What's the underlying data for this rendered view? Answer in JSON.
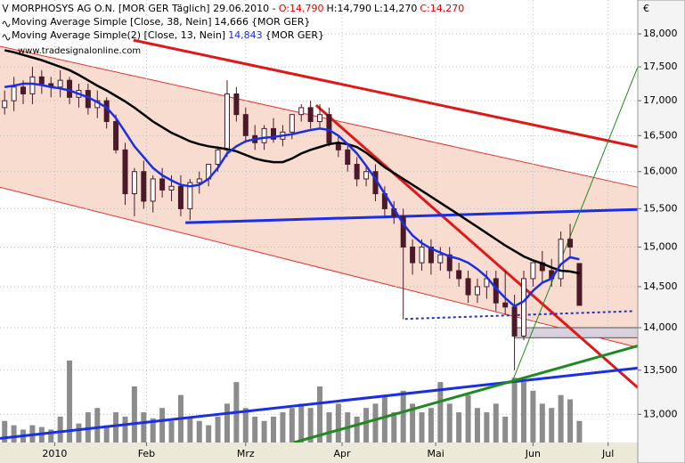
{
  "chart_data": {
    "type": "candlestick",
    "header": {
      "title": "MORPHOSYS AG O.N. [MOR GER  Täglich] 29.06.2010 -",
      "open": "O:14,790",
      "high": "H:14,790",
      "low": "L:14,270",
      "close": "C:14,270"
    },
    "watermark": "www.tradesignalonline.com",
    "currency": "€",
    "log_scale": true,
    "grid": true,
    "ylim": [
      12690,
      18530
    ],
    "yticks": [
      {
        "value": 13000,
        "label": "13,000"
      },
      {
        "value": 13500,
        "label": "13,500"
      },
      {
        "value": 14000,
        "label": "14,000"
      },
      {
        "value": 14500,
        "label": "14,500"
      },
      {
        "value": 15000,
        "label": "15,000"
      },
      {
        "value": 15500,
        "label": "15,500"
      },
      {
        "value": 16000,
        "label": "16,000"
      },
      {
        "value": 16500,
        "label": "16,500"
      },
      {
        "value": 17000,
        "label": "17,000"
      },
      {
        "value": 17500,
        "label": "17,500"
      },
      {
        "value": 18000,
        "label": "18,000"
      }
    ],
    "xlim": [
      -0.5,
      68.3
    ],
    "xticks": [
      {
        "value": 5.4,
        "label": "2010"
      },
      {
        "value": 15.3,
        "label": "Feb"
      },
      {
        "value": 26,
        "label": "Mrz"
      },
      {
        "value": 36.4,
        "label": "Apr"
      },
      {
        "value": 46.5,
        "label": "Mai"
      },
      {
        "value": 57,
        "label": "Jun"
      },
      {
        "value": 65.1,
        "label": "Jul"
      }
    ],
    "candle_color": "#4a1a2a",
    "candles": {
      "open": [
        16900,
        17000,
        17200,
        17100,
        17350,
        17250,
        17200,
        17300,
        17050,
        17150,
        16900,
        17000,
        16700,
        16300,
        15700,
        16000,
        15600,
        15900,
        15750,
        15800,
        15500,
        15850,
        15900,
        16100,
        16300,
        17100,
        16800,
        16500,
        16400,
        16600,
        16450,
        16550,
        16800,
        16900,
        16700,
        16800,
        16400,
        16300,
        16100,
        15900,
        16000,
        15700,
        15500,
        15400,
        15000,
        14800,
        15000,
        14800,
        14900,
        14700,
        14600,
        14400,
        14500,
        14600,
        14300,
        14250,
        13900,
        14600,
        14800,
        14700,
        14600,
        15100,
        14790
      ],
      "high": [
        17150,
        17350,
        17300,
        17500,
        17450,
        17350,
        17450,
        17350,
        17250,
        17250,
        17150,
        17050,
        16800,
        16400,
        16050,
        16150,
        15950,
        16050,
        15950,
        15950,
        15900,
        16000,
        16100,
        16350,
        17300,
        17200,
        16900,
        16650,
        16650,
        16750,
        16650,
        16750,
        16950,
        17000,
        16950,
        16900,
        16500,
        16400,
        16200,
        16100,
        16100,
        15800,
        15600,
        15500,
        15100,
        15100,
        15100,
        15000,
        15000,
        14800,
        14700,
        14600,
        14700,
        14700,
        14700,
        14400,
        14700,
        14800,
        14950,
        14850,
        15200,
        15300,
        14790
      ],
      "low": [
        16800,
        16850,
        16950,
        16950,
        17100,
        17050,
        17050,
        16950,
        16900,
        16800,
        16750,
        16600,
        16250,
        15550,
        15400,
        15500,
        15450,
        15650,
        15600,
        15400,
        15350,
        15700,
        15800,
        16000,
        16200,
        16700,
        16400,
        16300,
        16300,
        16400,
        16350,
        16450,
        16700,
        16600,
        16600,
        16350,
        16200,
        16000,
        15800,
        15800,
        15600,
        15400,
        15300,
        14100,
        14650,
        14700,
        14650,
        14700,
        14600,
        14500,
        14300,
        14300,
        14350,
        14200,
        14150,
        13500,
        13850,
        14500,
        14550,
        14500,
        14500,
        14850,
        14270
      ],
      "close": [
        17000,
        17200,
        17100,
        17350,
        17250,
        17200,
        17300,
        17050,
        17150,
        16900,
        17000,
        16700,
        16300,
        15700,
        16000,
        15600,
        15900,
        15750,
        15800,
        15500,
        15850,
        15900,
        16100,
        16300,
        17100,
        16800,
        16500,
        16400,
        16600,
        16450,
        16550,
        16800,
        16900,
        16700,
        16800,
        16400,
        16300,
        16100,
        15900,
        16000,
        15700,
        15500,
        15400,
        15000,
        14800,
        15000,
        14800,
        14900,
        14700,
        14600,
        14400,
        14500,
        14600,
        14300,
        14250,
        13900,
        14600,
        14800,
        14700,
        14600,
        15100,
        15000,
        14270
      ]
    },
    "series": [
      {
        "name": "Moving Average Simple [Close, 38, Nein]",
        "last_label": "14,666",
        "exchange": "{MOR GER}",
        "color": "#000000",
        "values": [
          17750,
          17720,
          17680,
          17640,
          17600,
          17550,
          17500,
          17450,
          17380,
          17300,
          17220,
          17150,
          17070,
          16990,
          16900,
          16800,
          16700,
          16620,
          16540,
          16480,
          16420,
          16380,
          16350,
          16330,
          16310,
          16280,
          16230,
          16180,
          16150,
          16130,
          16130,
          16180,
          16250,
          16300,
          16340,
          16380,
          16400,
          16380,
          16340,
          16260,
          16160,
          16060,
          15980,
          15900,
          15820,
          15740,
          15660,
          15580,
          15500,
          15420,
          15340,
          15260,
          15180,
          15100,
          15020,
          14950,
          14880,
          14830,
          14790,
          14740,
          14700,
          14690,
          14666
        ]
      },
      {
        "name": "Moving Average Simple(2) [Close, 13, Nein]",
        "last_label": "14,843",
        "exchange": "{MOR GER}",
        "color": "#1a2ee6",
        "values": [
          17200,
          17220,
          17250,
          17250,
          17230,
          17200,
          17180,
          17150,
          17100,
          17050,
          16980,
          16900,
          16750,
          16550,
          16350,
          16200,
          16050,
          15950,
          15880,
          15820,
          15800,
          15820,
          15900,
          16050,
          16250,
          16350,
          16420,
          16450,
          16470,
          16480,
          16500,
          16520,
          16550,
          16580,
          16600,
          16580,
          16500,
          16380,
          16250,
          16080,
          15900,
          15700,
          15500,
          15300,
          15150,
          15050,
          14980,
          14930,
          14880,
          14850,
          14800,
          14720,
          14620,
          14480,
          14360,
          14260,
          14320,
          14450,
          14550,
          14600,
          14780,
          14870,
          14843
        ]
      }
    ],
    "volume_color": "#8c8c8c",
    "volume_lim": [
      0,
      100
    ],
    "volume": [
      25,
      20,
      15,
      20,
      18,
      15,
      30,
      95,
      22,
      35,
      40,
      20,
      35,
      30,
      65,
      35,
      28,
      40,
      25,
      55,
      30,
      25,
      20,
      30,
      45,
      70,
      40,
      30,
      25,
      30,
      35,
      40,
      45,
      40,
      65,
      35,
      45,
      35,
      30,
      40,
      45,
      55,
      35,
      60,
      45,
      35,
      40,
      70,
      45,
      35,
      55,
      40,
      35,
      45,
      30,
      75,
      70,
      60,
      45,
      40,
      55,
      50,
      25
    ],
    "channel": {
      "x": [
        -0.5,
        68.3
      ],
      "upper": [
        17810,
        15787
      ],
      "lower": [
        15787,
        13765
      ],
      "color": "#f8dccf",
      "line_color": "#e83030"
    },
    "lines": [
      {
        "x": [
          13.9,
          68.3
        ],
        "y": [
          17904,
          16340
        ],
        "color": "#e01818",
        "style": "thick"
      },
      {
        "x": [
          33.6,
          68.3
        ],
        "y": [
          16935,
          13300
        ],
        "color": "#e01818",
        "style": "thick"
      },
      {
        "x": [
          19.5,
          68.3
        ],
        "y": [
          15315,
          15490
        ],
        "color": "#1a2ee6",
        "style": "thick"
      },
      {
        "x": [
          43.2,
          67.9
        ],
        "y": [
          14105,
          14200
        ],
        "color": "#1a2ee6",
        "style": "dotted"
      },
      {
        "x": [
          -0.5,
          68.3
        ],
        "y": [
          12735,
          13525
        ],
        "color": "#1a2ee6",
        "style": "thick"
      },
      {
        "x": [
          31.2,
          68.3
        ],
        "y": [
          12690,
          13784
        ],
        "color": "#1f8a1f",
        "style": "thick"
      },
      {
        "x": [
          54.7,
          68.3
        ],
        "y": [
          13352,
          17500
        ],
        "color": "#1f8a1f",
        "style": "thin"
      }
    ],
    "zone": {
      "x": [
        55,
        68.3
      ],
      "y": [
        14000,
        13880
      ],
      "color": "#d8d0dc"
    }
  }
}
